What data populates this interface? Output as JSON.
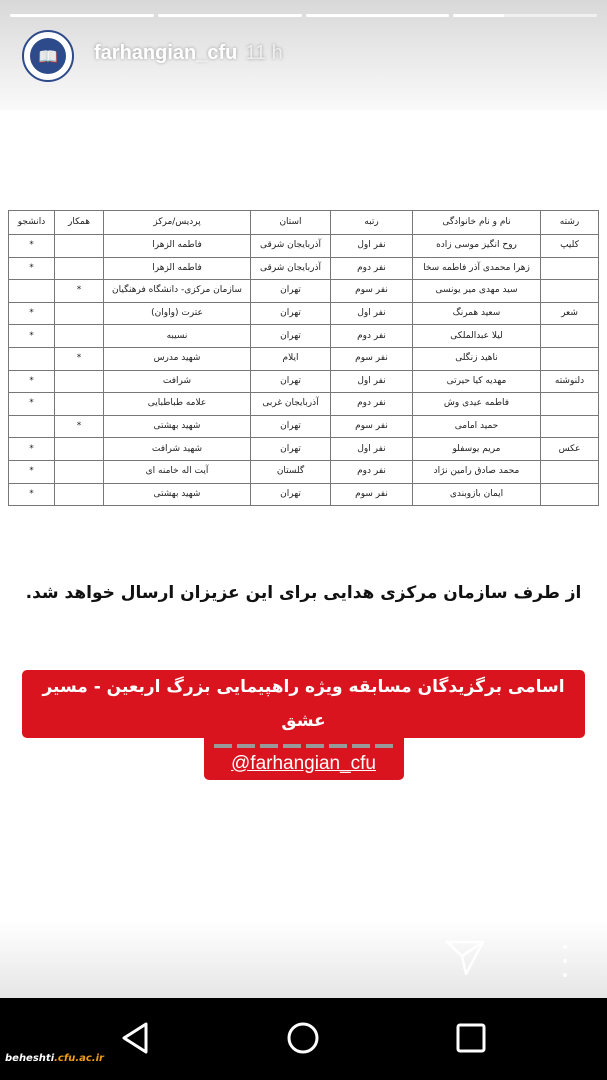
{
  "story": {
    "username": "farhangian_cfu",
    "time": "11 h",
    "progress": [
      1,
      1,
      1,
      0.35
    ]
  },
  "table": {
    "headers": [
      "رشته",
      "نام و نام خانوادگی",
      "رتبه",
      "استان",
      "پردیس/مرکز",
      "همکار",
      "دانشجو"
    ],
    "rows": [
      [
        "کلیپ",
        "روح انگیز موسی زاده",
        "نفر اول",
        "آذربایجان شرقی",
        "فاطمه الزهرا",
        "",
        "*"
      ],
      [
        "",
        "زهرا محمدی آذر فاطمه سخا",
        "نفر دوم",
        "آذربایجان شرقی",
        "فاطمه الزهرا",
        "",
        "*"
      ],
      [
        "",
        "سید مهدی میر یونسی",
        "نفر سوم",
        "تهران",
        "سازمان مرکزی- دانشگاه فرهنگیان",
        "*",
        ""
      ],
      [
        "شعر",
        "سعید همرنگ",
        "نفر اول",
        "تهران",
        "عترت (واوان)",
        "",
        "*"
      ],
      [
        "",
        "لیلا عبدالملکی",
        "نفر دوم",
        "تهران",
        "نسیبه",
        "",
        "*"
      ],
      [
        "",
        "ناهید زنگلی",
        "نفر سوم",
        "ایلام",
        "شهید مدرس",
        "*",
        ""
      ],
      [
        "دلنوشته",
        "مهدیه کیا حیرتی",
        "نفر اول",
        "تهران",
        "شرافت",
        "",
        "*"
      ],
      [
        "",
        "فاطمه عیدی وش",
        "نفر دوم",
        "آذربایجان غربی",
        "علامه طباطبایی",
        "",
        "*"
      ],
      [
        "",
        "حمید امامی",
        "نفر سوم",
        "تهران",
        "شهید بهشتی",
        "*",
        ""
      ],
      [
        "عکس",
        "مریم یوسفلو",
        "نفر اول",
        "تهران",
        "شهید شرافت",
        "",
        "*"
      ],
      [
        "",
        "محمد صادق رامین نژاد",
        "نفر دوم",
        "گلستان",
        "آیت اله خامنه ای",
        "",
        "*"
      ],
      [
        "",
        "ایمان بازوبندی",
        "نفر سوم",
        "تهران",
        "شهید بهشتی",
        "",
        "*"
      ]
    ]
  },
  "message": "از طرف سازمان مرکزی هدایی برای این عزیزان ارسال خواهد شد.",
  "banner": {
    "title": "اسامی برگزیدگان مسابقه ویژه راهپیمایی بزرگ اربعین - مسیر عشق",
    "handle": "@farhangian_cfu",
    "color": "#d9141f"
  },
  "watermark": {
    "name": "beheshti",
    "domain": ".cfu.ac.ir"
  }
}
